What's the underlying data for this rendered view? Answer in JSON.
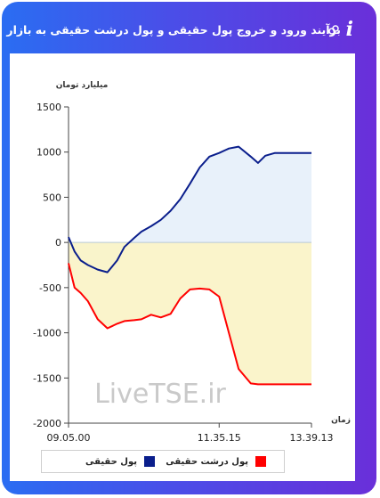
{
  "header": {
    "title": "برآیند ورود و خروج پول حقیقی و پول درشت حقیقی به بازار",
    "info_icon": "i",
    "icon_names": [
      "info-icon",
      "link-icon"
    ]
  },
  "watermark": "LiveTSE.ir",
  "colors": {
    "frame_start": "#2a6df2",
    "frame_end": "#6a2fd9",
    "series1": "#0a1e8c",
    "series2": "#ff0000",
    "fill_positive": "#e8f1fa",
    "fill_negative": "#faf3c8"
  },
  "chart_data": {
    "type": "line",
    "ylabel": "میلیارد تومان",
    "xlabel": "زمان",
    "ylim": [
      -2000,
      1500
    ],
    "yticks": [
      1500,
      1000,
      500,
      0,
      -500,
      -1000,
      -1500,
      -2000
    ],
    "xticks": [
      "09.05.00",
      "11.35.15",
      "13.39.13"
    ],
    "x": [
      0,
      0.025,
      0.05,
      0.08,
      0.12,
      0.16,
      0.2,
      0.23,
      0.27,
      0.3,
      0.34,
      0.38,
      0.42,
      0.46,
      0.5,
      0.54,
      0.58,
      0.62,
      0.66,
      0.7,
      0.75,
      0.78,
      0.81,
      0.85,
      0.9,
      0.95,
      1.0
    ],
    "series": [
      {
        "name": "پول حقیقی",
        "color": "#0a1e8c",
        "values": [
          60,
          -100,
          -200,
          -250,
          -300,
          -330,
          -200,
          -50,
          50,
          120,
          180,
          250,
          350,
          480,
          650,
          830,
          950,
          990,
          1040,
          1060,
          950,
          880,
          960,
          990,
          990,
          990,
          990
        ]
      },
      {
        "name": "پول درشت حقیقی",
        "color": "#ff0000",
        "values": [
          -230,
          -500,
          -560,
          -650,
          -850,
          -950,
          -900,
          -870,
          -860,
          -850,
          -800,
          -830,
          -790,
          -620,
          -520,
          -510,
          -520,
          -600,
          -1000,
          -1400,
          -1560,
          -1570,
          -1570,
          -1570,
          -1570,
          -1570,
          -1570
        ]
      }
    ],
    "legend": [
      "پول حقیقی",
      "پول درشت حقیقی"
    ],
    "legend_position": "bottom"
  }
}
